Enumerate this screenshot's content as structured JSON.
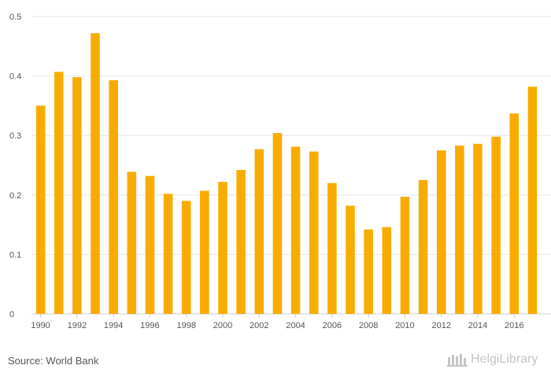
{
  "chart_data": {
    "type": "bar",
    "title": "",
    "xlabel": "",
    "ylabel": "",
    "categories": [
      "1990",
      "1991",
      "1992",
      "1993",
      "1994",
      "1995",
      "1996",
      "1997",
      "1998",
      "1999",
      "2000",
      "2001",
      "2002",
      "2003",
      "2004",
      "2005",
      "2006",
      "2007",
      "2008",
      "2009",
      "2010",
      "2011",
      "2012",
      "2013",
      "2014",
      "2015",
      "2016",
      "2017"
    ],
    "x_tick_labels": [
      "1990",
      "1992",
      "1994",
      "1996",
      "1998",
      "2000",
      "2002",
      "2004",
      "2006",
      "2008",
      "2010",
      "2012",
      "2014",
      "2016"
    ],
    "values": [
      0.35,
      0.407,
      0.398,
      0.472,
      0.393,
      0.239,
      0.232,
      0.202,
      0.19,
      0.207,
      0.222,
      0.242,
      0.277,
      0.304,
      0.281,
      0.273,
      0.22,
      0.182,
      0.142,
      0.146,
      0.197,
      0.225,
      0.275,
      0.283,
      0.286,
      0.298,
      0.337,
      0.382
    ],
    "ylim": [
      0,
      0.5
    ],
    "y_ticks": [
      "0",
      "0.1",
      "0.2",
      "0.3",
      "0.4",
      "0.5"
    ],
    "grid": true,
    "legend": "none",
    "bar_color": "#f9ac00",
    "grid_color": "#e6e6e6",
    "axis_color": "#cccccc"
  },
  "footer": {
    "source": "Source: World Bank",
    "logo_text": "HelgiLibrary",
    "logo_icon": "helgi-library-icon"
  }
}
